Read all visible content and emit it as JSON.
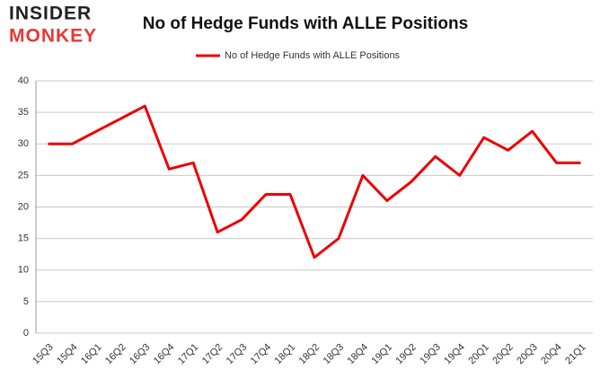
{
  "logo": {
    "top": "INSIDER",
    "bottom": "MONKEY"
  },
  "chart_data": {
    "type": "line",
    "title": "No of Hedge Funds with ALLE Positions",
    "categories": [
      "15Q3",
      "15Q4",
      "16Q1",
      "16Q2",
      "16Q3",
      "16Q4",
      "17Q1",
      "17Q2",
      "17Q3",
      "17Q4",
      "18Q1",
      "18Q2",
      "18Q3",
      "18Q4",
      "19Q1",
      "19Q2",
      "19Q3",
      "19Q4",
      "20Q1",
      "20Q2",
      "20Q3",
      "20Q4",
      "21Q1"
    ],
    "series": [
      {
        "name": "No of Hedge Funds with ALLE Positions",
        "color": "#ee0000",
        "values": [
          30,
          30,
          32,
          34,
          36,
          26,
          27,
          16,
          18,
          22,
          22,
          12,
          15,
          25,
          21,
          24,
          28,
          25,
          31,
          29,
          32,
          27,
          27
        ]
      }
    ],
    "ylim": [
      0,
      40
    ],
    "yticks": [
      0,
      5,
      10,
      15,
      20,
      25,
      30,
      35,
      40
    ],
    "grid": true,
    "legend": "top"
  }
}
